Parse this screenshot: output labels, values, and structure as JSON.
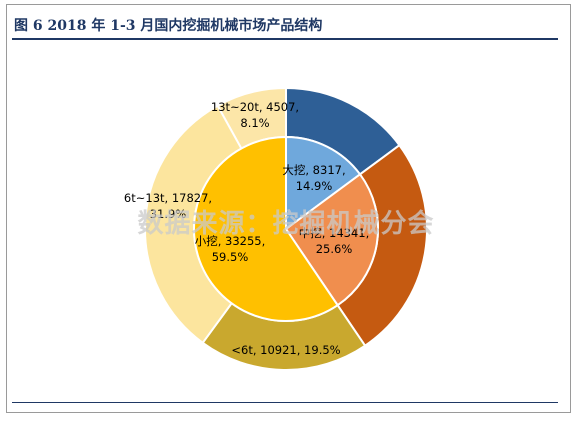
{
  "title": "图 6   2018 年 1-3 月国内挖掘机械市场产品结构",
  "watermark": "数据来源：挖掘机械分会",
  "chart_data": {
    "type": "pie",
    "subtype": "double-donut",
    "outer_ring": [
      {
        "name": "13t~20t",
        "value": 4507,
        "percent": "8.1%",
        "label": "13t~20t, 4507, 8.1%",
        "color": "#FCE6A8"
      },
      {
        "name": "大挖",
        "value": 8317,
        "percent": "14.9%",
        "label": "",
        "color": "#2E5F96"
      },
      {
        "name": "中挖",
        "value": 14341,
        "percent": "25.6%",
        "label": "",
        "color": "#C55A11"
      },
      {
        "name": "<6t",
        "value": 10921,
        "percent": "19.5%",
        "label": "<6t, 10921, 19.5%",
        "color": "#C9A82E"
      },
      {
        "name": "6t~13t",
        "value": 17827,
        "percent": "31.9%",
        "label": "6t~13t, 17827, 31.9%",
        "color": "#FCE59E"
      }
    ],
    "inner_ring": [
      {
        "name": "大挖",
        "value": 8317,
        "percent": "14.9%",
        "label": "大挖, 8317, 14.9%",
        "color": "#6FA8DC"
      },
      {
        "name": "中挖",
        "value": 14341,
        "percent": "25.6%",
        "label": "中挖, 14341, 25.6%",
        "color": "#F08E4E"
      },
      {
        "name": "小挖",
        "value": 33255,
        "percent": "59.5%",
        "label": "小挖, 33255, 59.5%",
        "color": "#FFC000"
      }
    ]
  }
}
